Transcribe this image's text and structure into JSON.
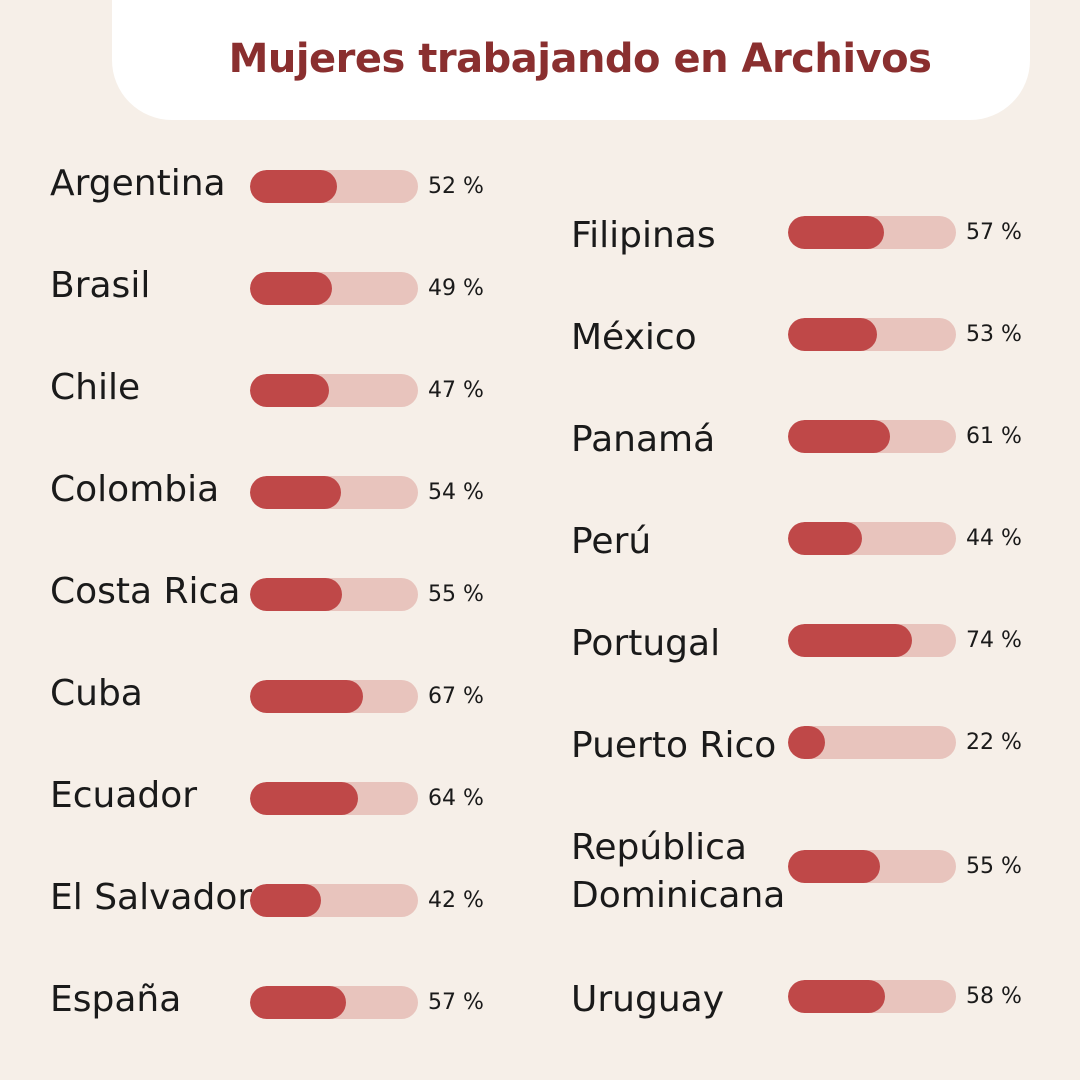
{
  "title": "Mujeres trabajando en Archivos",
  "colors": {
    "background": "#f6efe8",
    "title": "#8a2f2f",
    "bar_fill": "#bf4848",
    "bar_track": "#e8c4bd"
  },
  "chart_data": {
    "type": "bar",
    "title": "Mujeres trabajando en Archivos",
    "unit": "%",
    "xlim": [
      0,
      100
    ],
    "columns": [
      {
        "categories": [
          "Argentina",
          "Brasil",
          "Chile",
          "Colombia",
          "Costa Rica",
          "Cuba",
          "Ecuador",
          "El Salvador",
          "España"
        ],
        "values": [
          52,
          49,
          47,
          54,
          55,
          67,
          64,
          42,
          57
        ],
        "labels": [
          "52 %",
          "49 %",
          "47 %",
          "54 %",
          "55 %",
          "67 %",
          "64 %",
          "42 %",
          "57 %"
        ]
      },
      {
        "categories": [
          "Filipinas",
          "México",
          "Panamá",
          "Perú",
          "Portugal",
          "Puerto Rico",
          "República Dominicana",
          "Uruguay"
        ],
        "category_lines": [
          [
            "Filipinas"
          ],
          [
            "México"
          ],
          [
            "Panamá"
          ],
          [
            "Perú"
          ],
          [
            "Portugal"
          ],
          [
            "Puerto Rico"
          ],
          [
            "República",
            "Dominicana"
          ],
          [
            "Uruguay"
          ]
        ],
        "values": [
          57,
          53,
          61,
          44,
          74,
          22,
          55,
          58
        ],
        "labels": [
          "57 %",
          "53 %",
          "61 %",
          "44 %",
          "74 %",
          "22 %",
          "55 %",
          "58 %"
        ]
      }
    ]
  }
}
